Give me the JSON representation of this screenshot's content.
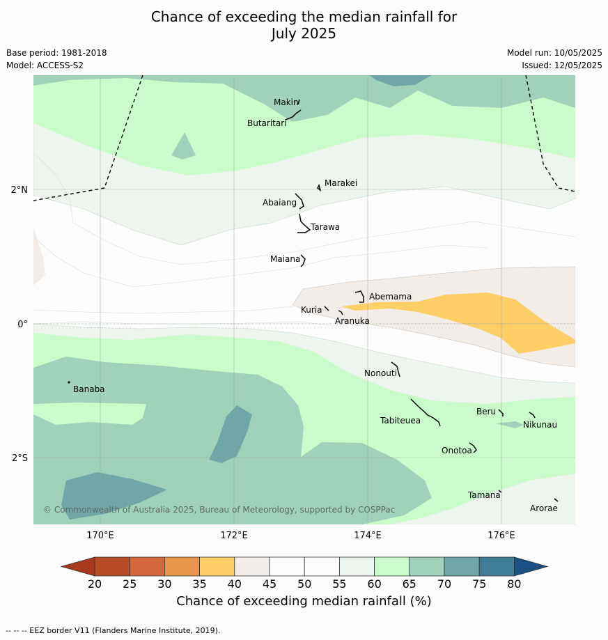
{
  "title_line1": "Chance of exceeding the median rainfall for",
  "title_line2": "July 2025",
  "base_period": "Base period: 1981-2018",
  "model": "Model: ACCESS-S2",
  "model_run": "Model run: 10/05/2025",
  "issued": "Issued: 12/05/2025",
  "copyright": "© Commonwealth of Australia 2025, Bureau of Meteorology, supported by COSPPac",
  "axes": {
    "x_ticks": [
      "170°E",
      "172°E",
      "174°E",
      "176°E"
    ],
    "y_ticks": [
      "2°N",
      "0°",
      "2°S"
    ]
  },
  "places": {
    "makin": "Makin",
    "butaritari": "Butaritari",
    "marakei": "Marakei",
    "abaiang": "Abaiang",
    "tarawa": "Tarawa",
    "maiana": "Maiana",
    "abemama": "Abemama",
    "kuria": "Kuria",
    "aranuka": "Aranuka",
    "nonouti": "Nonouti",
    "banaba": "Banaba",
    "beru": "Beru",
    "nikunau": "Nikunau",
    "tabiteuea": "Tabiteuea",
    "onotoa": "Onotoa",
    "tamana": "Tamana",
    "arorae": "Arorae"
  },
  "colorbar": {
    "ticks": [
      "20",
      "25",
      "30",
      "35",
      "40",
      "45",
      "50",
      "55",
      "60",
      "65",
      "70",
      "75",
      "80"
    ],
    "colors": [
      "#a6391e",
      "#b54c27",
      "#d3693a",
      "#e8974a",
      "#fece67",
      "#f2ede9",
      "#fcfdfc",
      "#fcfdfc",
      "#eef5ee",
      "#c9fcca",
      "#9fd1bb",
      "#70a6a6",
      "#417c97",
      "#1a5083"
    ],
    "label": "Chance of exceeding median rainfall (%)"
  },
  "footer": "-- -- -- EEZ border V11 (Flanders Marine Institute, 2019)."
}
